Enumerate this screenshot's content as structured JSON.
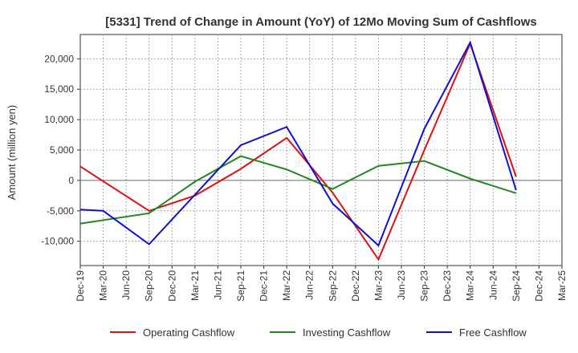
{
  "chart_data": {
    "type": "line",
    "title": "[5331]  Trend of Change in Amount (YoY) of 12Mo Moving Sum of Cashflows",
    "xlabel": "",
    "ylabel": "Amount (million yen)",
    "ylim": [
      -14000,
      24000
    ],
    "yticks": [
      -10000,
      -5000,
      0,
      5000,
      10000,
      15000,
      20000
    ],
    "ytick_labels": [
      "-10,000",
      "-5,000",
      "0",
      "5,000",
      "10,000",
      "15,000",
      "20,000"
    ],
    "categories": [
      "Dec-19",
      "Mar-20",
      "Jun-20",
      "Sep-20",
      "Dec-20",
      "Mar-21",
      "Jun-21",
      "Sep-21",
      "Dec-21",
      "Mar-22",
      "Jun-22",
      "Sep-22",
      "Dec-22",
      "Mar-23",
      "Jun-23",
      "Sep-23",
      "Dec-23",
      "Mar-24",
      "Jun-24",
      "Sep-24",
      "Dec-24",
      "Mar-25"
    ],
    "grid": true,
    "legend_position": "bottom",
    "series": [
      {
        "name": "Operating Cashflow",
        "color": "#dd1111",
        "values": [
          2300,
          null,
          null,
          -5000,
          null,
          -2500,
          null,
          1900,
          null,
          7000,
          null,
          -2000,
          null,
          -13000,
          null,
          5000,
          null,
          22500,
          null,
          600,
          null,
          null
        ]
      },
      {
        "name": "Investing Cashflow",
        "color": "#228822",
        "values": [
          -7100,
          null,
          null,
          -5400,
          null,
          -200,
          null,
          4000,
          null,
          1800,
          null,
          -1400,
          null,
          2400,
          null,
          3200,
          null,
          300,
          null,
          -2100,
          null,
          null
        ]
      },
      {
        "name": "Free Cashflow",
        "color": "#1111cc",
        "values": [
          -4800,
          -5000,
          null,
          -10500,
          null,
          null,
          null,
          5800,
          null,
          8800,
          null,
          -3800,
          null,
          -10700,
          null,
          8500,
          null,
          22700,
          null,
          -1600,
          null,
          null
        ]
      }
    ]
  }
}
